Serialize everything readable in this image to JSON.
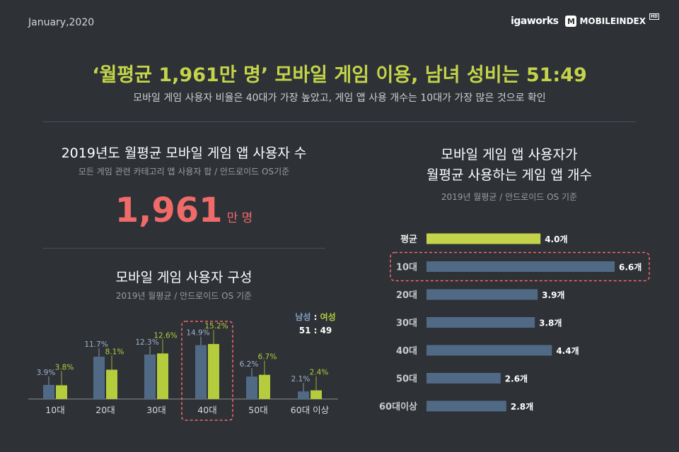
{
  "header": {
    "date": "January,2020",
    "logo_igaworks": "igaworks",
    "logo_mobileindex": "MOBILEINDEX",
    "logo_hd": "HD",
    "headline": "‘월평균 1,961만 명’ 모바일 게임 이용, 남녀 성비는 51:49",
    "subheadline": "모바일 게임 사용자 비율은 40대가 가장 높았고, 게임 앱 사용 개수는 10대가 가장 많은 것으로 확인"
  },
  "users_total": {
    "title": "2019년도 월평균 모바일 게임 앱 사용자 수",
    "subtitle": "모든 게임 관련 카테고리 앱 사용자 합 / 안드로이드 OS기준",
    "value": "1,961",
    "unit": "만 명"
  },
  "colors": {
    "background": "#2e3136",
    "accent_green": "#c4d44a",
    "male_blue": "#506a86",
    "female_green": "#b5cc3c",
    "highlight_red": "#f06a6a",
    "axis": "#8a8d91"
  },
  "chart_data": [
    {
      "type": "bar",
      "title": "모바일 게임 사용자 구성",
      "subtitle": "2019년 월평균 / 안드로이드 OS 기준",
      "categories": [
        "10대",
        "20대",
        "30대",
        "40대",
        "50대",
        "60대 이상"
      ],
      "series": [
        {
          "name": "남성",
          "values": [
            3.9,
            11.7,
            12.3,
            14.9,
            6.2,
            2.1
          ],
          "labels": [
            "3.9%",
            "11.7%",
            "12.3%",
            "14.9%",
            "6.2%",
            "2.1%"
          ]
        },
        {
          "name": "여성",
          "values": [
            3.8,
            8.1,
            12.6,
            15.2,
            6.7,
            2.4
          ],
          "labels": [
            "3.8%",
            "8.1%",
            "12.6%",
            "15.2%",
            "6.7%",
            "2.4%"
          ]
        }
      ],
      "legend": {
        "male": "남성",
        "separator": ":",
        "female": "여성",
        "ratio": "51 : 49",
        "placement": "top-right"
      },
      "highlight_category": "40대",
      "ylim": [
        0,
        16
      ]
    },
    {
      "type": "bar",
      "orientation": "horizontal",
      "title_line1": "모바일 게임 앱 사용자가",
      "title_line2": "월평균 사용하는 게임 앱 개수",
      "subtitle": "2019년 월평균 / 안드로이드 OS 기준",
      "categories": [
        "평균",
        "10대",
        "20대",
        "30대",
        "40대",
        "50대",
        "60대이상"
      ],
      "values": [
        4.0,
        6.6,
        3.9,
        3.8,
        4.4,
        2.6,
        2.8
      ],
      "labels": [
        "4.0개",
        "6.6개",
        "3.9개",
        "3.8개",
        "4.4개",
        "2.6개",
        "2.8개"
      ],
      "highlight_category": "10대",
      "xlim": [
        0,
        6.6
      ]
    }
  ]
}
